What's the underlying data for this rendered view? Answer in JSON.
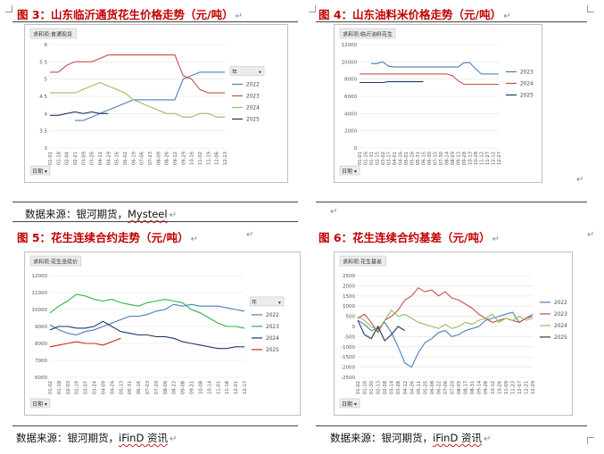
{
  "figures": [
    {
      "title": "图 3：山东临沂通货花生价格走势（元/吨）",
      "source_prefix": "数据来源：银河期货，",
      "source_brand": "Mysteel",
      "chart_data": {
        "type": "line",
        "field_label": "求和项:普通现货",
        "axis_button": "日期",
        "legend_header": "年",
        "ylim": [
          3,
          6
        ],
        "yticks": [
          "3",
          "3.5",
          "4",
          "4.5",
          "5",
          "5.5",
          "6"
        ],
        "x_ticks": [
          "01-01",
          "01-18",
          "02-04",
          "02-21",
          "03-09",
          "03-26",
          "04-12",
          "04-29",
          "05-16",
          "06-02",
          "06-19",
          "07-06",
          "07-23",
          "08-09",
          "08-26",
          "09-12",
          "09-29",
          "10-16",
          "11-02",
          "11-19",
          "12-06",
          "12-23"
        ],
        "series": [
          {
            "name": "2022",
            "color": "#4a7ebb",
            "values": [
              null,
              null,
              null,
              3.8,
              3.8,
              3.9,
              4.0,
              4.1,
              4.2,
              4.3,
              4.4,
              4.4,
              4.4,
              4.4,
              4.4,
              4.4,
              5.0,
              5.1,
              5.2,
              5.2,
              5.2,
              5.2
            ]
          },
          {
            "name": "2023",
            "color": "#c0504d",
            "values": [
              5.2,
              5.2,
              5.4,
              5.5,
              5.5,
              5.5,
              5.6,
              5.7,
              5.7,
              5.7,
              5.7,
              5.7,
              5.7,
              5.7,
              5.7,
              5.7,
              5.1,
              5.0,
              4.7,
              4.6,
              4.6,
              4.6
            ]
          },
          {
            "name": "2024",
            "color": "#9bbb59",
            "values": [
              4.6,
              4.6,
              4.6,
              4.6,
              4.7,
              4.8,
              4.9,
              4.8,
              4.7,
              4.6,
              4.4,
              4.3,
              4.2,
              4.1,
              4.0,
              4.0,
              3.9,
              3.9,
              4.0,
              4.0,
              3.9,
              3.9
            ]
          },
          {
            "name": "2025",
            "color": "#1f3864",
            "values": [
              3.95,
              3.95,
              4.0,
              4.05,
              4.0,
              4.05,
              4.0,
              4.0,
              null,
              null,
              null,
              null,
              null,
              null,
              null,
              null,
              null,
              null,
              null,
              null,
              null,
              null
            ]
          }
        ]
      }
    },
    {
      "title": "图 4：山东油料米价格走势（元/吨）",
      "source_prefix": "",
      "source_brand": "",
      "chart_data": {
        "type": "line",
        "field_label": "求和项:临沂油料花生",
        "axis_button": "日期",
        "legend_header": "",
        "ylim": [
          0,
          12000
        ],
        "yticks": [
          "0",
          "2000",
          "4000",
          "6000",
          "8000",
          "10000",
          "12000"
        ],
        "x_ticks": [
          "01-01",
          "01-16",
          "01-31",
          "02-15",
          "03-02",
          "03-17",
          "04-01",
          "04-16",
          "05-01",
          "05-16",
          "05-31",
          "06-15",
          "06-30",
          "07-15",
          "07-30",
          "08-14",
          "08-29",
          "09-13",
          "09-28",
          "10-13",
          "10-28",
          "11-12",
          "11-27",
          "12-12",
          "12-27"
        ],
        "series": [
          {
            "name": "2023",
            "color": "#4a7ebb",
            "values": [
              null,
              null,
              9800,
              9800,
              10000,
              9500,
              9400,
              9400,
              9400,
              9400,
              9400,
              9400,
              9400,
              9400,
              9400,
              9400,
              9400,
              9400,
              9900,
              9900,
              9200,
              8600,
              8600,
              8600,
              8600
            ]
          },
          {
            "name": "2024",
            "color": "#c0504d",
            "values": [
              8600,
              8600,
              8600,
              8600,
              8600,
              8600,
              8600,
              8600,
              8600,
              8600,
              8600,
              8600,
              8600,
              8600,
              8600,
              8600,
              8400,
              7800,
              7400,
              7400,
              7400,
              7400,
              7400,
              7400,
              7400
            ]
          },
          {
            "name": "2025",
            "color": "#1f3864",
            "values": [
              7600,
              7600,
              7600,
              7600,
              7600,
              7700,
              7700,
              7700,
              7700,
              7700,
              7700,
              7700,
              null,
              null,
              null,
              null,
              null,
              null,
              null,
              null,
              null,
              null,
              null,
              null,
              null
            ]
          }
        ]
      }
    },
    {
      "title": "图 5：花生连续合约走势（元/吨）",
      "source_prefix": "数据来源：银河期货，",
      "source_brand": "iFinD 资讯",
      "chart_data": {
        "type": "line",
        "field_label": "求和项:花生连续价",
        "axis_button": "日期",
        "legend_header": "年",
        "ylim": [
          6000,
          12000
        ],
        "yticks": [
          "6000",
          "7000",
          "8000",
          "9000",
          "10000",
          "11000",
          "12000"
        ],
        "x_ticks": [
          "01-02",
          "01-18",
          "02-03",
          "02-19",
          "03-07",
          "03-24",
          "04-09",
          "04-26",
          "05-13",
          "05-31",
          "06-16",
          "07-03",
          "07-20",
          "08-06",
          "08-23",
          "09-08",
          "09-21",
          "10-08",
          "10-14",
          "11-01",
          "11-18",
          "12-01",
          "12-17"
        ],
        "series": [
          {
            "name": "2022",
            "color": "#4a7ebb",
            "values": [
              9100,
              8800,
              8600,
              8500,
              8700,
              8800,
              9000,
              9200,
              9400,
              9600,
              9600,
              9700,
              9900,
              10000,
              10300,
              10200,
              10300,
              10200,
              10200,
              10200,
              10100,
              10000,
              9900
            ]
          },
          {
            "name": "2023",
            "color": "#2fb14c",
            "values": [
              9800,
              10200,
              10500,
              10900,
              10800,
              10600,
              10500,
              10600,
              10400,
              10300,
              10200,
              10400,
              10500,
              10600,
              10500,
              10400,
              10000,
              9800,
              9500,
              9200,
              9000,
              9000,
              8900
            ]
          },
          {
            "name": "2024",
            "color": "#1f3864",
            "values": [
              8800,
              9000,
              9000,
              8900,
              8900,
              9000,
              9300,
              9000,
              8700,
              8600,
              8500,
              8500,
              8400,
              8400,
              8300,
              8100,
              8000,
              7900,
              7800,
              7700,
              7700,
              7800,
              7800
            ]
          },
          {
            "name": "2025",
            "color": "#e02020",
            "values": [
              7800,
              7900,
              8000,
              8100,
              8000,
              8000,
              7900,
              8100,
              8300,
              null,
              null,
              null,
              null,
              null,
              null,
              null,
              null,
              null,
              null,
              null,
              null,
              null,
              null
            ]
          }
        ]
      }
    },
    {
      "title": "图 6：花生连续合约基差（元/吨）",
      "source_prefix": "数据来源：银河期货，",
      "source_brand": "iFinD 资讯",
      "chart_data": {
        "type": "line",
        "field_label": "求和项:花生基差",
        "axis_button": "日期",
        "legend_header": "",
        "ylim": [
          -2500,
          2500
        ],
        "yticks": [
          "-2500",
          "-2000",
          "-1500",
          "-1000",
          "-500",
          "0",
          "500",
          "1000",
          "1500",
          "2000",
          "2500"
        ],
        "x_ticks": [
          "01-02",
          "01-16",
          "01-30",
          "02-13",
          "02-28",
          "03-14",
          "03-28",
          "04-12",
          "04-26",
          "05-11",
          "05-25",
          "06-08",
          "06-22",
          "07-06",
          "07-20",
          "08-03",
          "08-17",
          "08-31",
          "09-14",
          "09-28",
          "10-12",
          "10-26",
          "11-09",
          "11-23",
          "12-07",
          "12-21",
          "12-29"
        ],
        "series": [
          {
            "name": "2022",
            "color": "#4a7ebb",
            "values": [
              300,
              100,
              -200,
              -100,
              200,
              -300,
              -1000,
              -1800,
              -2000,
              -1300,
              -800,
              -600,
              -300,
              -200,
              -500,
              -400,
              -200,
              -100,
              0,
              300,
              400,
              500,
              600,
              700,
              200,
              400,
              600
            ]
          },
          {
            "name": "2023",
            "color": "#c0504d",
            "values": [
              400,
              600,
              200,
              -300,
              300,
              500,
              800,
              1300,
              1500,
              1900,
              1700,
              1800,
              1500,
              1700,
              1400,
              1300,
              1100,
              900,
              600,
              400,
              200,
              300,
              400,
              300,
              200,
              400,
              500
            ]
          },
          {
            "name": "2024",
            "color": "#9bbb59",
            "values": [
              500,
              300,
              0,
              -200,
              300,
              800,
              500,
              600,
              400,
              200,
              100,
              0,
              -100,
              100,
              -100,
              0,
              200,
              100,
              300,
              400,
              600,
              200,
              400,
              300,
              500,
              300,
              400
            ]
          },
          {
            "name": "2025",
            "color": "#1f3864",
            "values": [
              300,
              -400,
              -600,
              0,
              -700,
              -400,
              0,
              -200,
              null,
              null,
              null,
              null,
              null,
              null,
              null,
              null,
              null,
              null,
              null,
              null,
              null,
              null,
              null,
              null,
              null,
              null,
              null
            ]
          }
        ]
      }
    }
  ]
}
